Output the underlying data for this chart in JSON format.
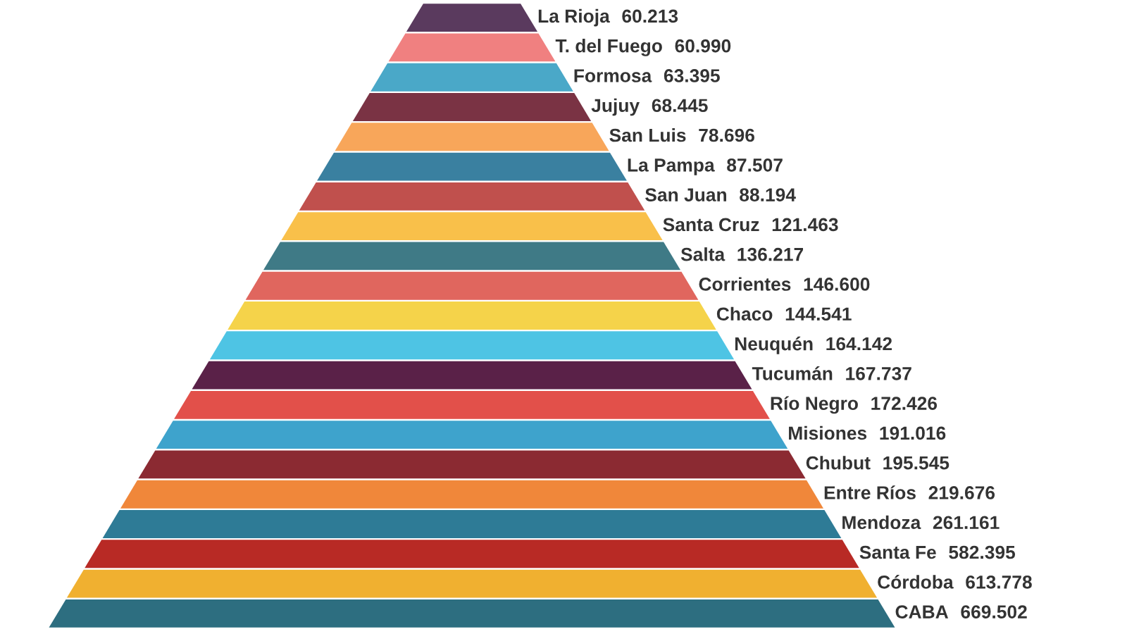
{
  "chart_data": {
    "type": "other",
    "categories": [
      "La Rioja",
      "T. del Fuego",
      "Formosa",
      "Jujuy",
      "San Luis",
      "La Pampa",
      "San Juan",
      "Santa Cruz",
      "Salta",
      "Corrientes",
      "Chaco",
      "Neuquén",
      "Tucumán",
      "Río Negro",
      "Misiones",
      "Chubut",
      "Entre Ríos",
      "Mendoza",
      "Santa Fe",
      "Córdoba",
      "CABA"
    ],
    "values": [
      60.213,
      60.99,
      63.395,
      68.445,
      78.696,
      87.507,
      88.194,
      121.463,
      136.217,
      146.6,
      144.541,
      164.142,
      167.737,
      172.426,
      191.016,
      195.545,
      219.676,
      261.161,
      582.395,
      613.778,
      669.502
    ],
    "value_labels": [
      "60.213",
      "60.990",
      "63.395",
      "68.445",
      "78.696",
      "87.507",
      "88.194",
      "121.463",
      "136.217",
      "146.600",
      "144.541",
      "164.142",
      "167.737",
      "172.426",
      "191.016",
      "195.545",
      "219.676",
      "261.161",
      "582.395",
      "613.778",
      "669.502"
    ],
    "colors": [
      "#5a3a5e",
      "#f08080",
      "#4aa8c8",
      "#7a3344",
      "#f8a65a",
      "#3a80a0",
      "#c0504d",
      "#f9c04a",
      "#3f7a86",
      "#e0665e",
      "#f5d34a",
      "#4ec4e4",
      "#5a2148",
      "#e2504a",
      "#3ea3cc",
      "#8b2a32",
      "#f0873a",
      "#2e7b96",
      "#b82a25",
      "#f0b030",
      "#2d6e80"
    ]
  }
}
